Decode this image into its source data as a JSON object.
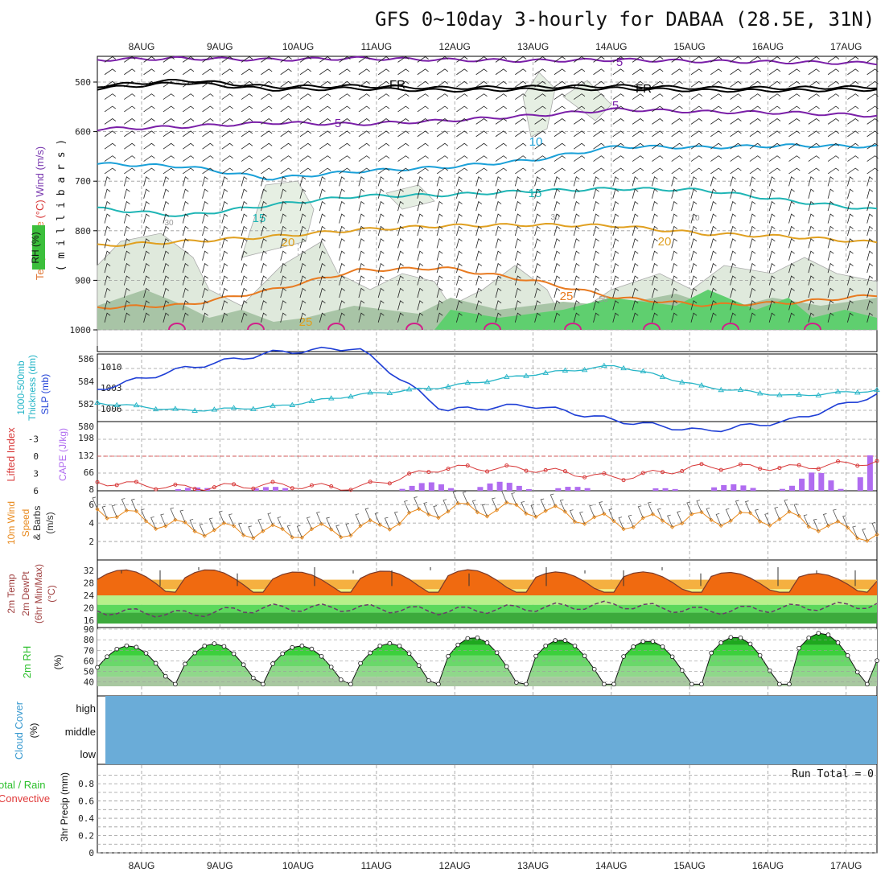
{
  "title": "GFS 0~10day 3-hourly for DABAA (28.5E, 31N)",
  "dates": [
    "8AUG",
    "9AUG",
    "10AUG",
    "11AUG",
    "12AUG",
    "13AUG",
    "14AUG",
    "15AUG",
    "16AUG",
    "17AUG"
  ],
  "colors": {
    "grid": "#9a9a9a",
    "slp": "#1f3fd6",
    "thick": "#26b5c7",
    "cape": "#b06cf0",
    "li": "#d83a3a",
    "wind": "#e88a1e",
    "rh": "#2bbf2b",
    "cloud": "#6aacd8"
  },
  "chart_data": [
    {
      "type": "contour",
      "panel": "upper-air",
      "ylabel_parts": [
        "RH (%)",
        "Temperature (°C)",
        "Wind (m/s)",
        "( m i l l i b a r s )"
      ],
      "yticks": [
        500,
        600,
        700,
        800,
        900,
        1000
      ],
      "ylim": [
        1000,
        450
      ],
      "x": [
        "8AUG",
        "9AUG",
        "10AUG",
        "11AUG",
        "12AUG",
        "13AUG",
        "14AUG",
        "15AUG",
        "16AUG",
        "17AUG"
      ],
      "contour_labels": [
        "5",
        "FR",
        "5",
        "FR",
        "5",
        "10",
        "15",
        "15",
        "20",
        "20",
        "25",
        "25",
        "30",
        "30",
        "50",
        "10"
      ],
      "series": [
        {
          "name": "-5",
          "color": "#7a1fa8",
          "p": [
            455,
            452,
            455,
            452,
            455,
            457,
            455,
            458,
            460,
            462
          ]
        },
        {
          "name": "FR",
          "color": "#000000",
          "p": [
            508,
            496,
            510,
            508,
            512,
            510,
            508,
            512,
            512,
            510
          ]
        },
        {
          "name": "5",
          "color": "#7a1fa8",
          "p": [
            595,
            590,
            582,
            585,
            578,
            568,
            555,
            560,
            562,
            568
          ]
        },
        {
          "name": "10",
          "color": "#1aa0d8",
          "p": [
            665,
            670,
            695,
            680,
            672,
            658,
            630,
            632,
            628,
            630
          ]
        },
        {
          "name": "15",
          "color": "#1fb5b5",
          "p": [
            755,
            770,
            748,
            730,
            728,
            720,
            715,
            718,
            740,
            758
          ]
        },
        {
          "name": "20",
          "color": "#e0a020",
          "p": [
            830,
            822,
            812,
            798,
            790,
            788,
            790,
            806,
            812,
            824
          ]
        },
        {
          "name": "25",
          "color": "#e87a20",
          "p": [
            955,
            950,
            920,
            880,
            875,
            900,
            935,
            950,
            945,
            930
          ]
        }
      ]
    },
    {
      "type": "line",
      "panel": "pressure",
      "ylabel_parts": [
        "1000-500mb",
        "Thickness (dm)",
        "SLP (mb)"
      ],
      "y_left": [
        580,
        582,
        584,
        586
      ],
      "y_right": [
        1006,
        1003,
        1010
      ],
      "x": [
        "8AUG",
        "9AUG",
        "10AUG",
        "11AUG",
        "12AUG",
        "13AUG",
        "14AUG",
        "15AUG",
        "16AUG",
        "17AUG"
      ],
      "series": [
        {
          "name": "SLP",
          "values": [
            1008,
            1010,
            1011.5,
            1012,
            1006,
            1006.5,
            1005,
            1004,
            1005,
            1007.5
          ]
        },
        {
          "name": "Thickness",
          "values": [
            582.1,
            581.4,
            581.7,
            582.8,
            583.5,
            584.6,
            585.4,
            583.5,
            582.7,
            583.2
          ]
        }
      ]
    },
    {
      "type": "bar",
      "panel": "cape-li",
      "ylabel_parts": [
        "Lifted Index",
        "CAPE (J/kg)"
      ],
      "y_left": [
        -3,
        0,
        3,
        6
      ],
      "y_right": [
        198,
        132,
        66,
        8
      ],
      "x": [
        "8AUG",
        "9AUG",
        "10AUG",
        "11AUG",
        "12AUG",
        "13AUG",
        "14AUG",
        "15AUG",
        "16AUG",
        "17AUG"
      ],
      "series": [
        {
          "name": "CAPE",
          "values": [
            0,
            12,
            15,
            3,
            40,
            30,
            0,
            22,
            30,
            215
          ]
        },
        {
          "name": "Lifted Index",
          "values": [
            4.5,
            5.5,
            5,
            5.5,
            2,
            2.2,
            3.8,
            1.8,
            2,
            1
          ]
        }
      ]
    },
    {
      "type": "line",
      "panel": "wind10m",
      "ylabel_parts": [
        "10m Wind",
        "Speed",
        "& Barbs",
        "(m/s)"
      ],
      "yticks": [
        2,
        4,
        6
      ],
      "x": [
        "8AUG",
        "9AUG",
        "10AUG",
        "11AUG",
        "12AUG",
        "13AUG",
        "14AUG",
        "15AUG",
        "16AUG",
        "17AUG"
      ],
      "series": [
        {
          "name": "Speed",
          "values": [
            5.5,
            3.5,
            3,
            3.2,
            5.5,
            5.5,
            4,
            4.5,
            4.5,
            2.5
          ]
        }
      ]
    },
    {
      "type": "area",
      "panel": "temp2m",
      "ylabel_parts": [
        "2m Temp",
        "2m DewPt",
        "(6hr Min/Max)",
        "(°C)"
      ],
      "yticks": [
        16,
        20,
        24,
        28,
        32
      ],
      "x": [
        "8AUG",
        "9AUG",
        "10AUG",
        "11AUG",
        "12AUG",
        "13AUG",
        "14AUG",
        "15AUG",
        "16AUG",
        "17AUG"
      ],
      "series": [
        {
          "name": "Temp",
          "values": [
            32,
            32.5,
            31.5,
            31.5,
            32.5,
            31.5,
            31.5,
            31.5,
            31,
            31
          ]
        },
        {
          "name": "DewPt",
          "values": [
            19,
            18,
            20,
            20,
            19,
            20,
            21,
            19,
            20,
            21
          ]
        }
      ]
    },
    {
      "type": "area",
      "panel": "rh2m",
      "ylabel_parts": [
        "2m RH",
        "(%)"
      ],
      "yticks": [
        40,
        50,
        60,
        70,
        80,
        90
      ],
      "x": [
        "8AUG",
        "9AUG",
        "10AUG",
        "11AUG",
        "12AUG",
        "13AUG",
        "14AUG",
        "15AUG",
        "16AUG",
        "17AUG"
      ],
      "series": [
        {
          "name": "RH",
          "values": [
            73,
            77,
            75,
            73,
            83,
            81,
            78,
            81,
            86,
            87
          ]
        }
      ]
    },
    {
      "type": "area",
      "panel": "cloud",
      "ylabel_parts": [
        "Cloud Cover",
        "(%)"
      ],
      "levels": [
        "high",
        "middle",
        "low"
      ]
    },
    {
      "type": "bar",
      "panel": "precip",
      "ylabel_parts": [
        "Total / Rain",
        "Convective",
        "3hr Precip (mm)"
      ],
      "yticks": [
        "0",
        "0.2",
        "0.4",
        "0.6",
        "0.8"
      ],
      "run_total": "Run Total = 0",
      "x": [
        "8AUG",
        "9AUG",
        "10AUG",
        "11AUG",
        "12AUG",
        "13AUG",
        "14AUG",
        "15AUG",
        "16AUG",
        "17AUG"
      ],
      "series": [
        {
          "name": "Precip",
          "values": [
            0,
            0,
            0,
            0,
            0,
            0,
            0,
            0,
            0,
            0
          ]
        }
      ]
    }
  ]
}
